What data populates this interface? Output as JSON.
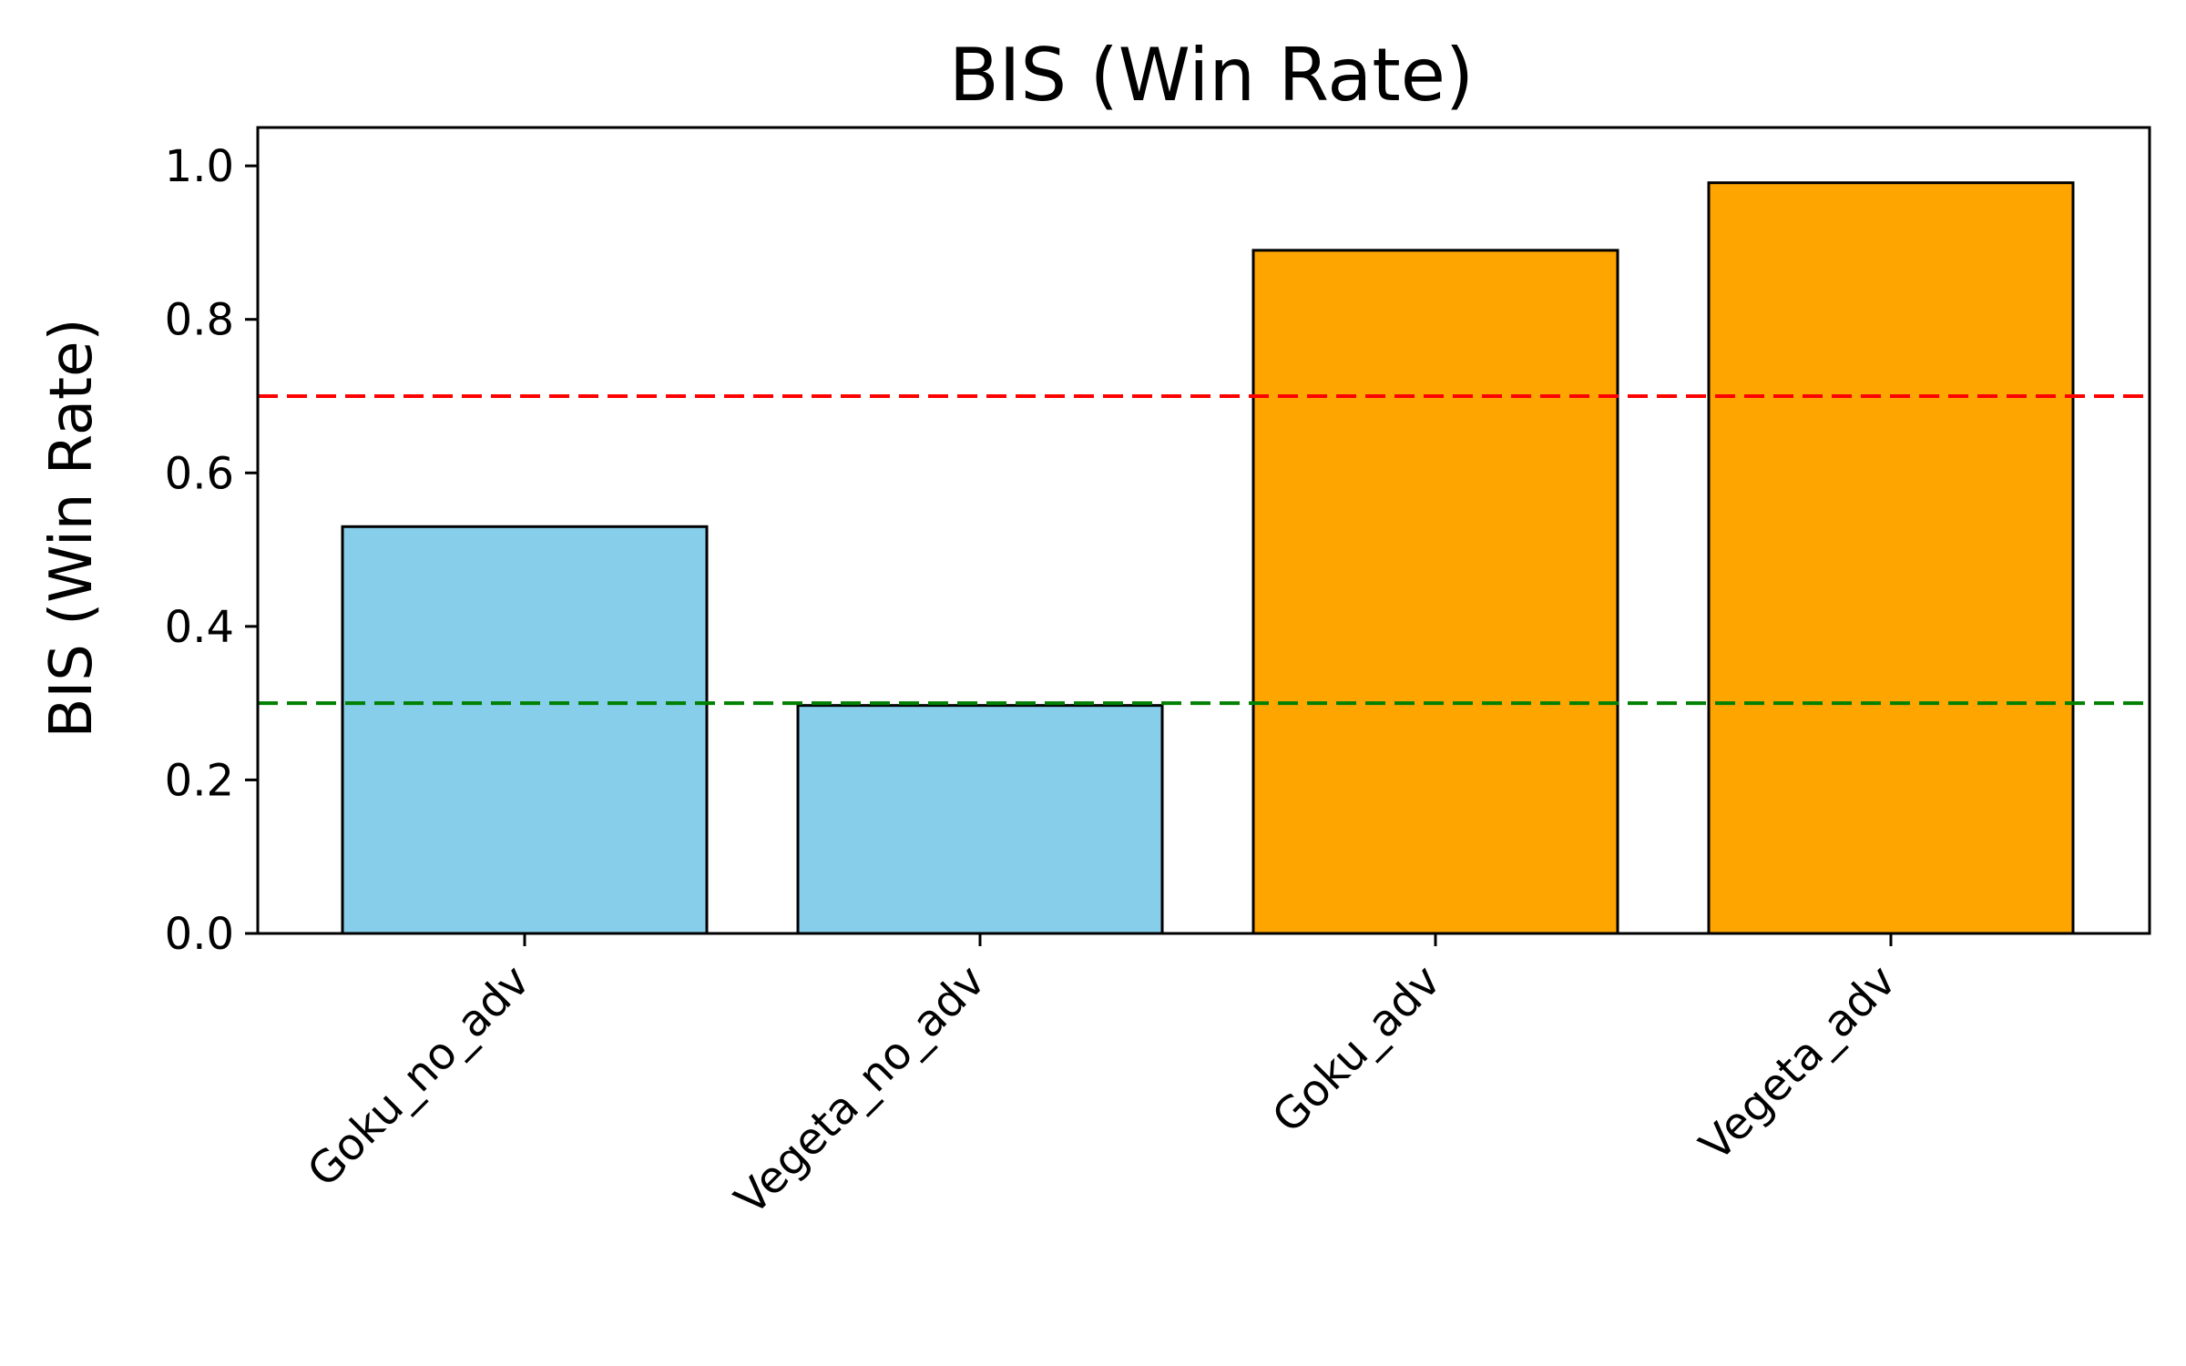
{
  "chart_data": {
    "type": "bar",
    "title": "BIS (Win Rate)",
    "xlabel": "",
    "ylabel": "BIS (Win Rate)",
    "categories": [
      "Goku_no_adv",
      "Vegeta_no_adv",
      "Goku_adv",
      "Vegeta_adv"
    ],
    "values": [
      0.53,
      0.297,
      0.89,
      0.978
    ],
    "bar_colors": [
      "#87CEEB",
      "#87CEEB",
      "#FFA500",
      "#FFA500"
    ],
    "bar_edge_color": "#000000",
    "ylim": [
      0,
      1.05
    ],
    "yticks": [
      "0.0",
      "0.2",
      "0.4",
      "0.6",
      "0.8",
      "1.0"
    ],
    "reference_lines": [
      {
        "y": 0.7,
        "color": "#FF0000",
        "style": "dashed"
      },
      {
        "y": 0.3,
        "color": "#008000",
        "style": "dashed"
      }
    ],
    "grid": false,
    "xtick_rotation": -45
  }
}
